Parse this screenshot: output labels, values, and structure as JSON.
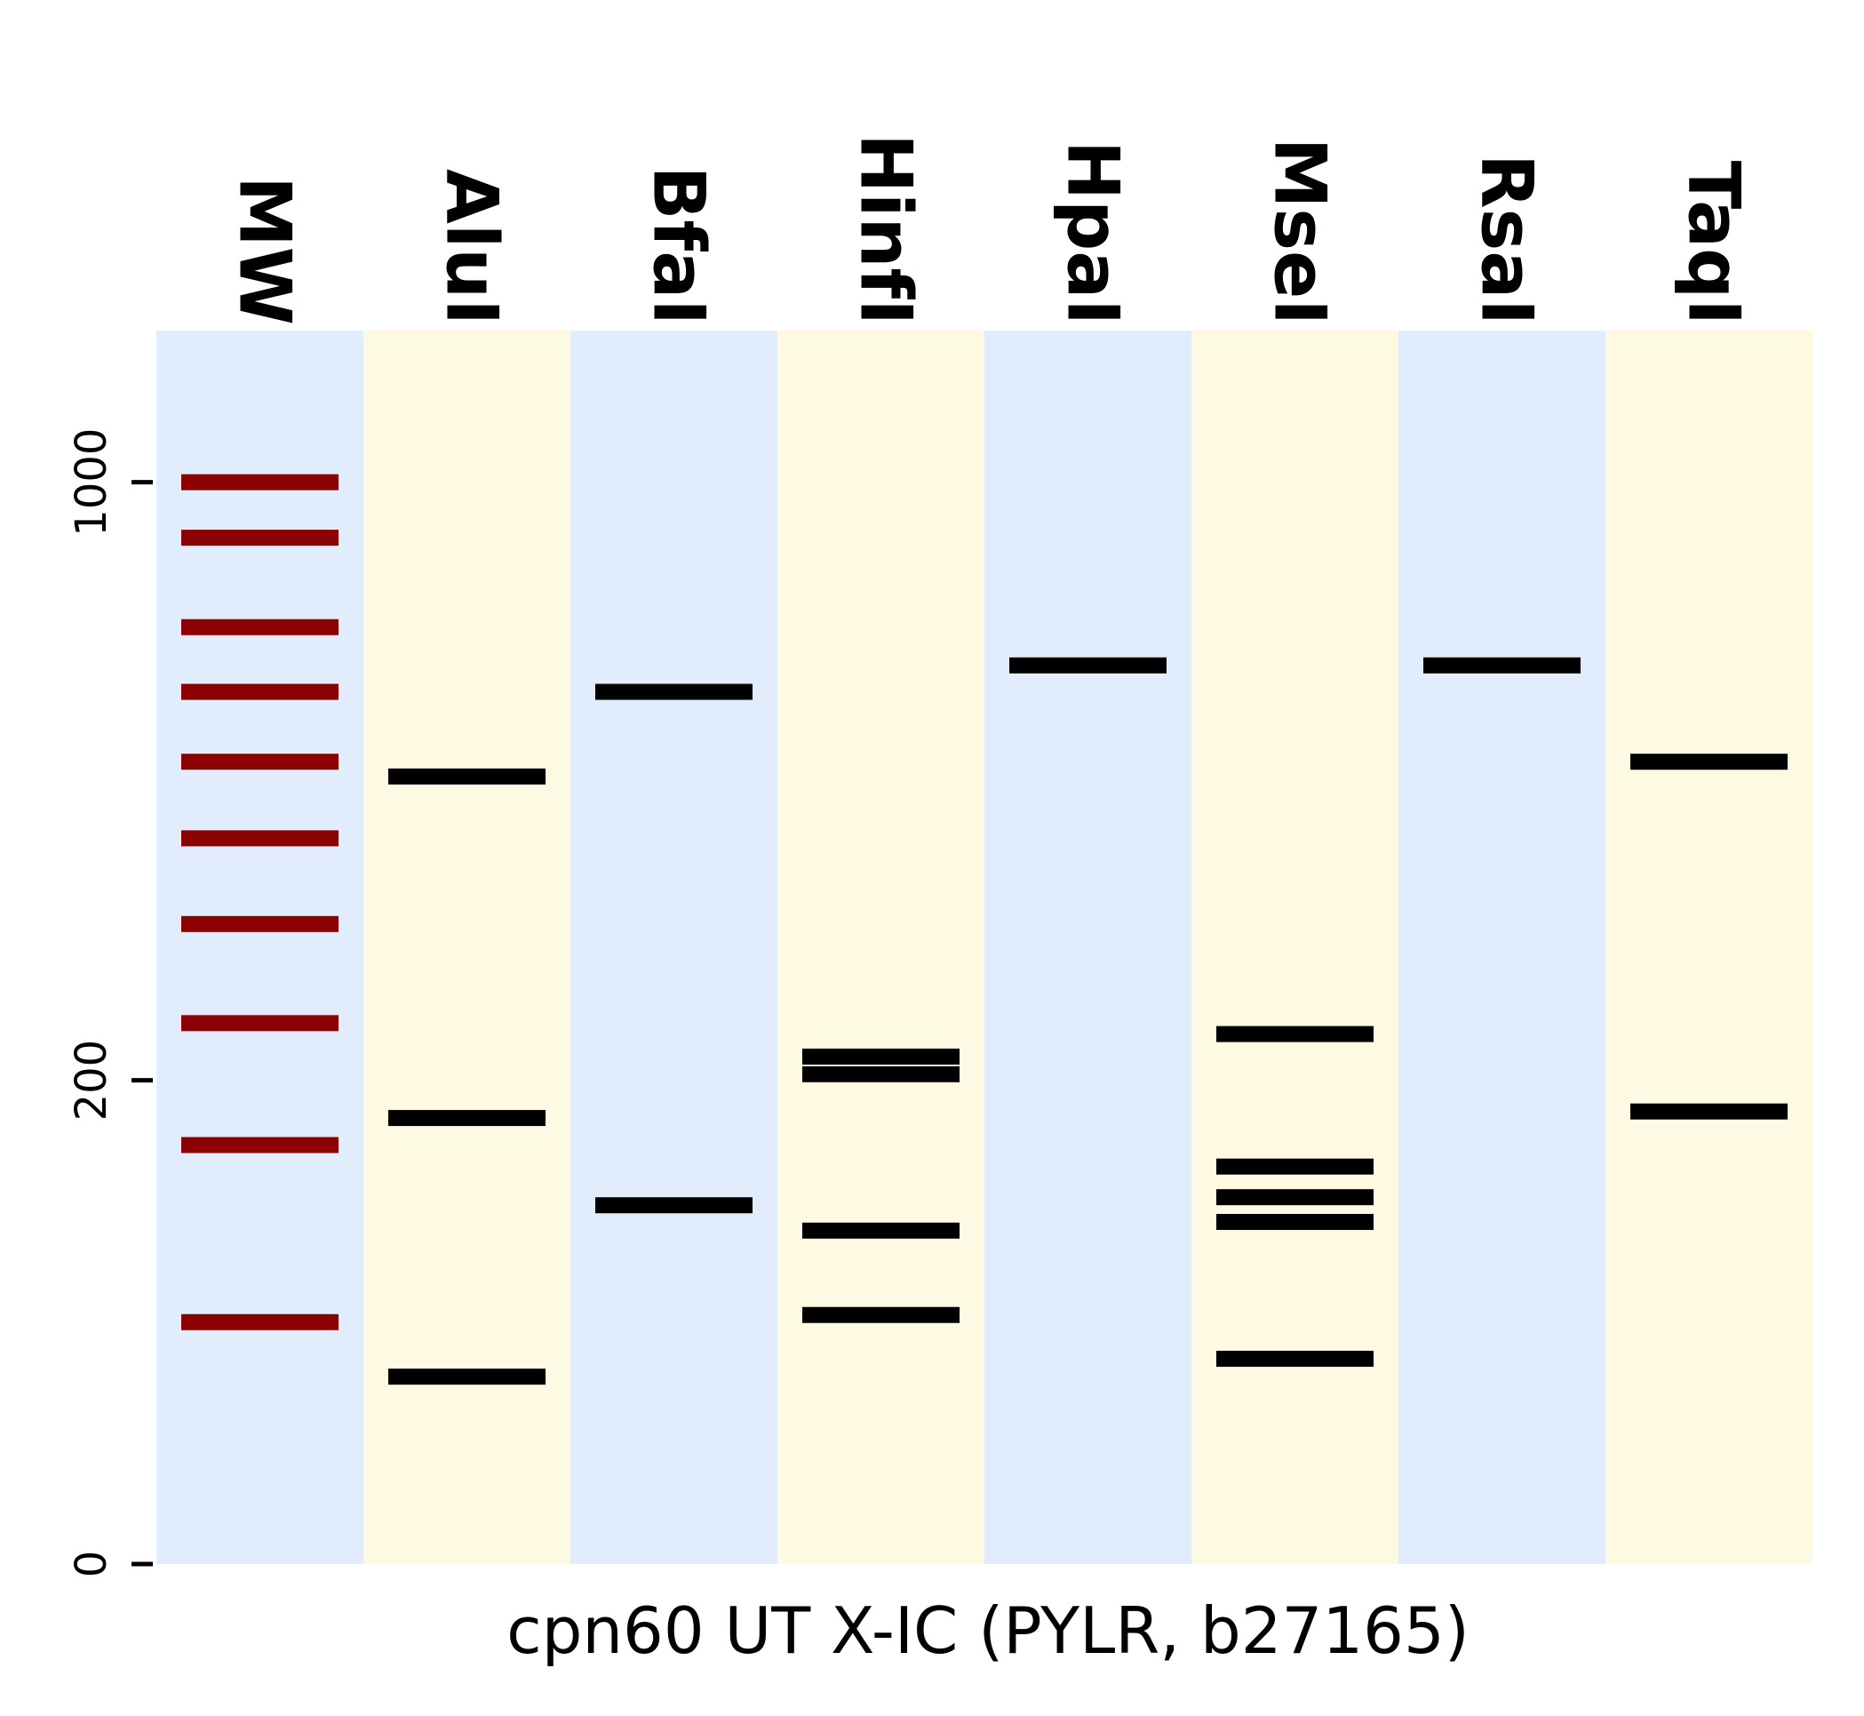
{
  "chart_data": {
    "type": "gel",
    "xlabel": "cpn60 UT X-IC (PYLR, b27165)",
    "ylabel": "",
    "y_scale": "sqrt",
    "ylim": [
      0,
      1300
    ],
    "yticks": [
      0,
      200,
      1000
    ],
    "colors": {
      "lane_blue": "#e1ecfc",
      "lane_yellow": "#fdf9e3",
      "ladder_band": "#8b0000",
      "digest_band": "#000000"
    },
    "lanes": [
      {
        "name": "MW",
        "background": "lane_blue",
        "band_color": "ladder_band",
        "bands": [
          1000,
          900,
          750,
          650,
          550,
          450,
          350,
          250,
          150,
          50
        ]
      },
      {
        "name": "AluI",
        "background": "lane_yellow",
        "band_color": "digest_band",
        "bands": [
          530,
          170,
          30
        ]
      },
      {
        "name": "BfaI",
        "background": "lane_blue",
        "band_color": "digest_band",
        "bands": [
          650,
          110
        ]
      },
      {
        "name": "HinfI",
        "background": "lane_yellow",
        "band_color": "digest_band",
        "bands": [
          220,
          205,
          95,
          53
        ]
      },
      {
        "name": "HpaI",
        "background": "lane_blue",
        "band_color": "digest_band",
        "bands": [
          690
        ]
      },
      {
        "name": "MseI",
        "background": "lane_yellow",
        "band_color": "digest_band",
        "bands": [
          240,
          135,
          115,
          100,
          36
        ]
      },
      {
        "name": "RsaI",
        "background": "lane_blue",
        "band_color": "digest_band",
        "bands": [
          690
        ]
      },
      {
        "name": "TaqI",
        "background": "lane_yellow",
        "band_color": "digest_band",
        "bands": [
          550,
          175
        ]
      }
    ]
  }
}
